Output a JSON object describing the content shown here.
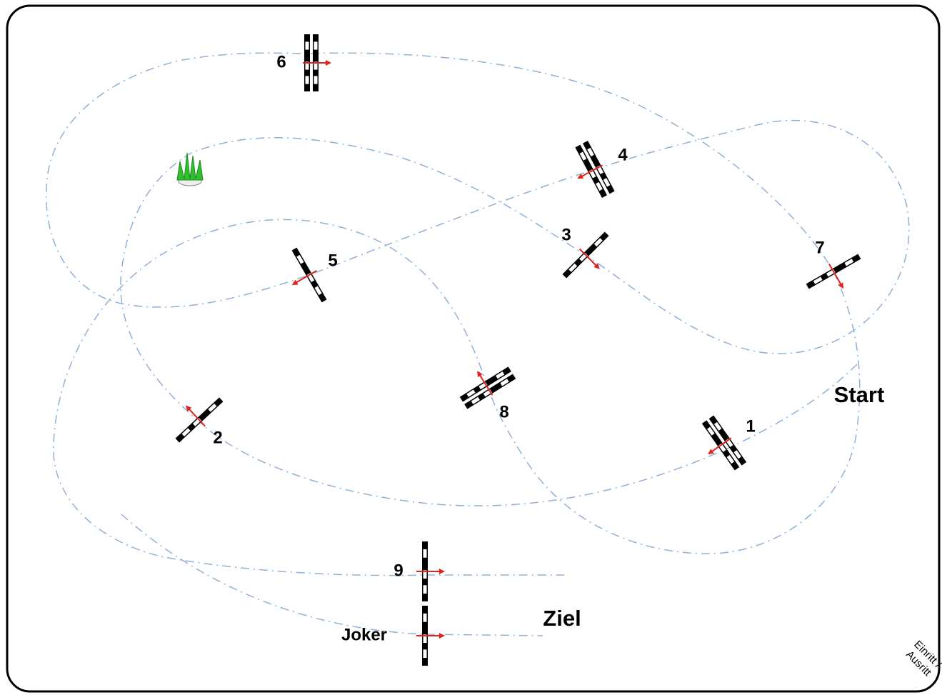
{
  "jumps": [
    {
      "label": "1"
    },
    {
      "label": "2"
    },
    {
      "label": "3"
    },
    {
      "label": "4"
    },
    {
      "label": "5"
    },
    {
      "label": "6"
    },
    {
      "label": "7"
    },
    {
      "label": "8"
    },
    {
      "label": "9"
    },
    {
      "label": "Joker"
    }
  ],
  "start": "Start",
  "finish": "Ziel",
  "entrance": [
    "Einritt /",
    "Ausritt"
  ]
}
